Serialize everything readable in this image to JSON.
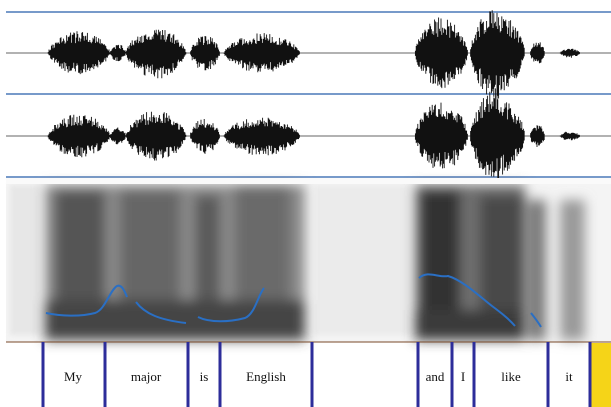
{
  "tier": {
    "words": [
      "My",
      "major",
      "is",
      "English",
      "and",
      "I",
      "like",
      "it"
    ]
  }
}
